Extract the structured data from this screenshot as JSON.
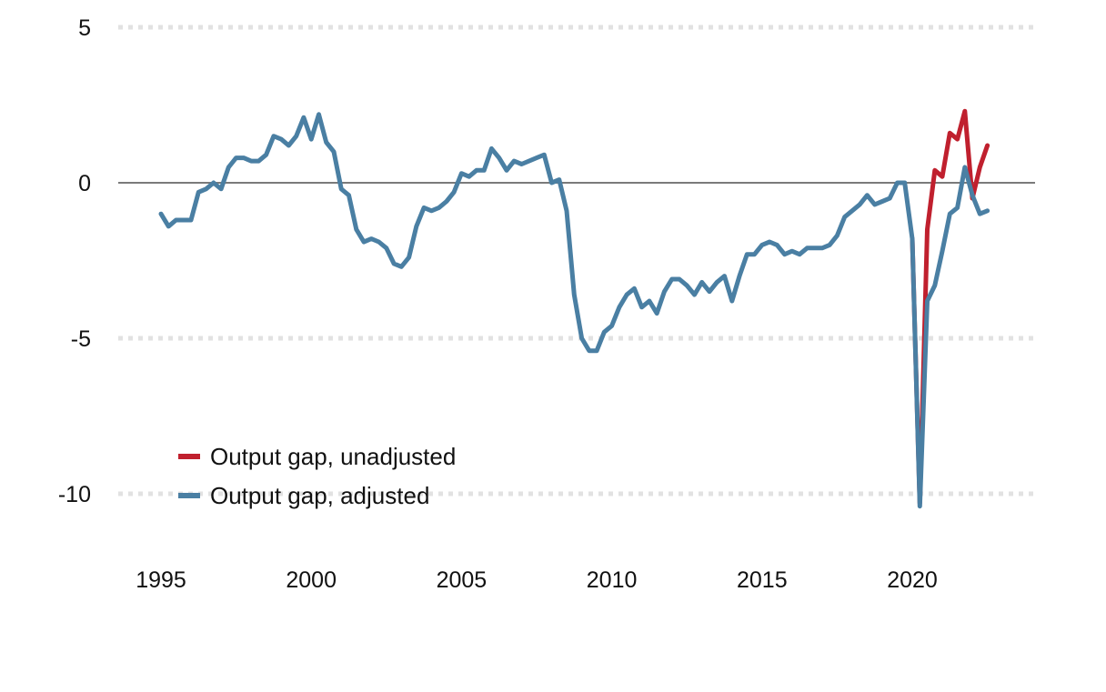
{
  "chart_data": {
    "type": "line",
    "title": "",
    "xlabel": "",
    "ylabel": "",
    "xlim": [
      1993.6,
      2024
    ],
    "ylim": [
      -12,
      5
    ],
    "x_ticks": [
      1995,
      2000,
      2005,
      2010,
      2015,
      2020
    ],
    "x_tick_labels": [
      "1995",
      "2000",
      "2005",
      "2010",
      "2015",
      "2020"
    ],
    "y_ticks": [
      5,
      0,
      -5,
      -10
    ],
    "y_tick_labels": [
      "5",
      "0",
      "-5",
      "-10"
    ],
    "grid": "horizontal dotted",
    "zero_line": true,
    "legend_position": "bottom-left",
    "series": [
      {
        "name": "Output gap, unadjusted",
        "color": "#c0202e",
        "x": [
          2020.0,
          2020.25,
          2020.5,
          2020.75,
          2021.0,
          2021.25,
          2021.5,
          2021.75,
          2022.0,
          2022.25,
          2022.5
        ],
        "y": [
          -1.8,
          -10.3,
          -1.5,
          0.4,
          0.2,
          1.6,
          1.4,
          2.3,
          -0.5,
          0.5,
          1.2
        ]
      },
      {
        "name": "Output gap, adjusted",
        "color": "#4a7fa3",
        "x": [
          1995.0,
          1995.25,
          1995.5,
          1995.75,
          1996.0,
          1996.25,
          1996.5,
          1996.75,
          1997.0,
          1997.25,
          1997.5,
          1997.75,
          1998.0,
          1998.25,
          1998.5,
          1998.75,
          1999.0,
          1999.25,
          1999.5,
          1999.75,
          2000.0,
          2000.25,
          2000.5,
          2000.75,
          2001.0,
          2001.25,
          2001.5,
          2001.75,
          2002.0,
          2002.25,
          2002.5,
          2002.75,
          2003.0,
          2003.25,
          2003.5,
          2003.75,
          2004.0,
          2004.25,
          2004.5,
          2004.75,
          2005.0,
          2005.25,
          2005.5,
          2005.75,
          2006.0,
          2006.25,
          2006.5,
          2006.75,
          2007.0,
          2007.25,
          2007.5,
          2007.75,
          2008.0,
          2008.25,
          2008.5,
          2008.75,
          2009.0,
          2009.25,
          2009.5,
          2009.75,
          2010.0,
          2010.25,
          2010.5,
          2010.75,
          2011.0,
          2011.25,
          2011.5,
          2011.75,
          2012.0,
          2012.25,
          2012.5,
          2012.75,
          2013.0,
          2013.25,
          2013.5,
          2013.75,
          2014.0,
          2014.25,
          2014.5,
          2014.75,
          2015.0,
          2015.25,
          2015.5,
          2015.75,
          2016.0,
          2016.25,
          2016.5,
          2016.75,
          2017.0,
          2017.25,
          2017.5,
          2017.75,
          2018.0,
          2018.25,
          2018.5,
          2018.75,
          2019.0,
          2019.25,
          2019.5,
          2019.75,
          2020.0,
          2020.25,
          2020.5,
          2020.75,
          2021.0,
          2021.25,
          2021.5,
          2021.75,
          2022.0,
          2022.25,
          2022.5
        ],
        "y": [
          -1.0,
          -1.4,
          -1.2,
          -1.2,
          -1.2,
          -0.3,
          -0.2,
          0.0,
          -0.2,
          0.5,
          0.8,
          0.8,
          0.7,
          0.7,
          0.9,
          1.5,
          1.4,
          1.2,
          1.5,
          2.1,
          1.4,
          2.2,
          1.3,
          1.0,
          -0.2,
          -0.4,
          -1.5,
          -1.9,
          -1.8,
          -1.9,
          -2.1,
          -2.6,
          -2.7,
          -2.4,
          -1.4,
          -0.8,
          -0.9,
          -0.8,
          -0.6,
          -0.3,
          0.3,
          0.2,
          0.4,
          0.4,
          1.1,
          0.8,
          0.4,
          0.7,
          0.6,
          0.7,
          0.8,
          0.9,
          0.0,
          0.1,
          -0.9,
          -3.6,
          -5.0,
          -5.4,
          -5.4,
          -4.8,
          -4.6,
          -4.0,
          -3.6,
          -3.4,
          -4.0,
          -3.8,
          -4.2,
          -3.5,
          -3.1,
          -3.1,
          -3.3,
          -3.6,
          -3.2,
          -3.5,
          -3.2,
          -3.0,
          -3.8,
          -3.0,
          -2.3,
          -2.3,
          -2.0,
          -1.9,
          -2.0,
          -2.3,
          -2.2,
          -2.3,
          -2.1,
          -2.1,
          -2.1,
          -2.0,
          -1.7,
          -1.1,
          -0.9,
          -0.7,
          -0.4,
          -0.7,
          -0.6,
          -0.5,
          0.0,
          0.0,
          -1.8,
          -10.4,
          -3.8,
          -3.3,
          -2.2,
          -1.0,
          -0.8,
          0.5,
          -0.4,
          -1.0,
          -0.9
        ]
      }
    ]
  }
}
